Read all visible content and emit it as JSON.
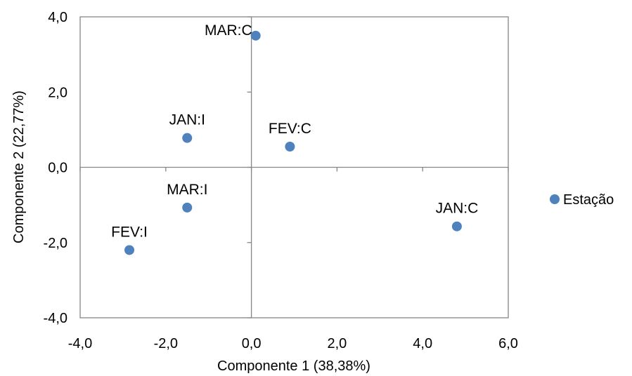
{
  "chart_data": {
    "type": "scatter",
    "title": "",
    "xlabel": "Componente 1 (38,38%)",
    "ylabel": "Componente 2 (22,77%)",
    "xlim": [
      -4,
      6
    ],
    "ylim": [
      -4,
      4
    ],
    "x_ticks": [
      -4,
      -2,
      0,
      2,
      4,
      6
    ],
    "y_ticks": [
      -4,
      -2,
      0,
      2,
      4
    ],
    "x_tick_labels": [
      "-4,0",
      "-2,0",
      "0,0",
      "2,0",
      "4,0",
      "6,0"
    ],
    "y_tick_labels": [
      "-4,0",
      "-2,0",
      "0,0",
      "2,0",
      "4,0"
    ],
    "grid": false,
    "legend_position": "right",
    "series": [
      {
        "name": "Estação",
        "color": "#4f81bd",
        "points": [
          {
            "label": "MAR:C",
            "x": 0.1,
            "y": 3.5
          },
          {
            "label": "JAN:I",
            "x": -1.5,
            "y": 0.78
          },
          {
            "label": "FEV:C",
            "x": 0.9,
            "y": 0.55
          },
          {
            "label": "MAR:I",
            "x": -1.5,
            "y": -1.07
          },
          {
            "label": "JAN:C",
            "x": 4.8,
            "y": -1.57
          },
          {
            "label": "FEV:I",
            "x": -2.85,
            "y": -2.2
          }
        ]
      }
    ]
  }
}
